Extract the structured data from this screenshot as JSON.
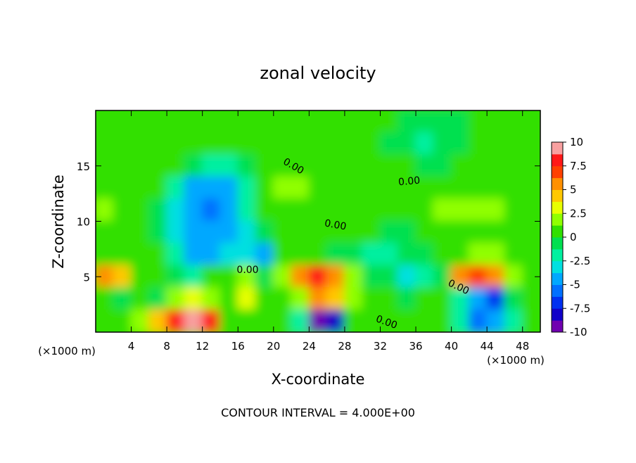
{
  "chart_data": {
    "type": "heatmap",
    "title": "zonal velocity",
    "x_label": "X-coordinate",
    "y_label": "Z-coordinate",
    "x_unit": "(×1000 m)",
    "footer": "CONTOUR INTERVAL = 4.000E+00",
    "contour_labels": [
      "0.00",
      "0.00",
      "0.00",
      "0.00",
      "0.00",
      "0.00"
    ],
    "x": [
      1,
      3,
      5,
      7,
      9,
      11,
      13,
      15,
      17,
      19,
      21,
      23,
      25,
      27,
      29,
      31,
      33,
      35,
      37,
      39,
      41,
      43,
      45,
      47,
      49
    ],
    "y": [
      19,
      17,
      15,
      13,
      11,
      9,
      7,
      5,
      3,
      1
    ],
    "z": [
      [
        0.5,
        0.5,
        0,
        0,
        0.5,
        0.5,
        0,
        0,
        0.5,
        0.5,
        0,
        0,
        0,
        0.5,
        0.5,
        0,
        0,
        -0.5,
        -1,
        -1,
        -0.5,
        0,
        0,
        0.5,
        0
      ],
      [
        0.5,
        0,
        0,
        0.5,
        0.5,
        0.5,
        0,
        0.5,
        0,
        0,
        0.5,
        1,
        1,
        0.5,
        0,
        0,
        -0.5,
        -1,
        -1.5,
        -1,
        -0.5,
        0,
        0,
        0,
        0
      ],
      [
        0,
        0.5,
        0.5,
        0,
        0,
        -1,
        -2,
        -1.5,
        -0.5,
        0,
        1,
        1,
        1,
        0.5,
        0.5,
        0,
        0,
        0,
        -0.5,
        -0.5,
        0,
        0,
        0,
        0,
        0
      ],
      [
        1,
        1,
        0.5,
        0,
        -2,
        -4,
        -5,
        -4,
        -1.5,
        0,
        1.5,
        1.5,
        1,
        1,
        0.5,
        1,
        0.5,
        1,
        1,
        1,
        1,
        1,
        1,
        1,
        1
      ],
      [
        1.5,
        1,
        0.5,
        -0.5,
        -3,
        -5,
        -6,
        -5,
        -2,
        0,
        1,
        1,
        1,
        1,
        1,
        0.5,
        0.5,
        0.5,
        1,
        1.5,
        1.5,
        1.5,
        1.5,
        1,
        1
      ],
      [
        1,
        0.5,
        0,
        -1,
        -3,
        -5,
        -5,
        -5,
        -3,
        -1,
        0.5,
        1,
        1,
        0.5,
        0.5,
        0,
        -0.5,
        -1,
        0,
        0.5,
        1,
        1,
        1,
        1,
        0.5
      ],
      [
        1,
        1,
        0,
        0,
        -2,
        -4,
        -4,
        -3,
        -3,
        -4,
        0,
        1,
        0,
        -1,
        -1,
        -2,
        -2,
        -1,
        -0.5,
        0,
        1,
        2,
        2,
        1,
        0.5
      ],
      [
        5,
        4,
        0,
        0,
        -1,
        -2,
        0.5,
        0,
        2,
        -1,
        2,
        6,
        8,
        6,
        2,
        -1,
        -1,
        -3,
        -2,
        -1,
        5,
        7,
        5,
        2,
        0.5
      ],
      [
        1,
        -1,
        0,
        -1,
        2,
        3,
        2,
        0,
        3,
        1,
        1,
        2,
        5,
        4,
        2,
        1,
        0,
        -1,
        1,
        0,
        -2,
        -5,
        -7,
        -1,
        0
      ],
      [
        0,
        1,
        2,
        4,
        8,
        10,
        8,
        1,
        0,
        1,
        0,
        -2,
        -10,
        -8,
        0,
        0,
        1,
        0,
        1,
        0,
        -2,
        -6,
        -5,
        -2,
        0
      ]
    ],
    "xlim": [
      0,
      50
    ],
    "ylim": [
      0,
      20
    ],
    "xticks": [
      4,
      8,
      12,
      16,
      20,
      24,
      28,
      32,
      36,
      40,
      44,
      48
    ],
    "yticks": [
      5,
      10,
      15
    ],
    "zlim": [
      -10,
      10
    ],
    "zticks": [
      10,
      7.5,
      5,
      2.5,
      0,
      -2.5,
      -5,
      -7.5,
      -10
    ],
    "colors": [
      "#7000b0",
      "#1000c8",
      "#0030f0",
      "#0070ff",
      "#00a8ff",
      "#00e0e0",
      "#00f0a0",
      "#00e050",
      "#30e000",
      "#90ff00",
      "#e8ff00",
      "#ffc800",
      "#ff9000",
      "#ff4000",
      "#ff1818",
      "#f8a0a0"
    ]
  }
}
